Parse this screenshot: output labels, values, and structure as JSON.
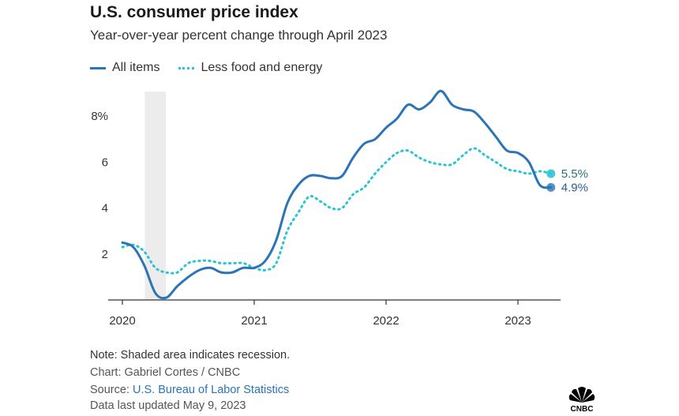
{
  "header": {
    "title": "U.S. consumer price index",
    "subtitle": "Year-over-year percent change through April 2023"
  },
  "footer": {
    "note": "Note: Shaded area indicates recession.",
    "credit": "Chart: Gabriel Cortes / CNBC",
    "source_prefix": "Source: ",
    "source_link": "U.S. Bureau of Labor Statistics",
    "updated": "Data last updated May 9, 2023",
    "logo_text": "CNBC"
  },
  "colors": {
    "all_items": "#2b74b7",
    "core": "#2bc4d6",
    "recession": "#ececec",
    "axis": "#333333",
    "link": "#2b74b7"
  },
  "chart_data": {
    "type": "line",
    "title": "U.S. consumer price index",
    "subtitle": "Year-over-year percent change through April 2023",
    "xlabel": "",
    "ylabel": "",
    "x_start": 2020.0,
    "x_step_months": 1,
    "xlim": [
      2020.0,
      2023.33
    ],
    "ylim": [
      0,
      9
    ],
    "y_ticks": [
      2,
      4,
      6,
      8
    ],
    "y_tick_labels": [
      "2",
      "4",
      "6",
      "8%"
    ],
    "x_ticks": [
      2020,
      2021,
      2022,
      2023
    ],
    "x_tick_labels": [
      "2020",
      "2021",
      "2022",
      "2023"
    ],
    "grid": false,
    "legend_position": "top-left",
    "recession": {
      "start": 2020.17,
      "end": 2020.33,
      "label": "Recession"
    },
    "series": [
      {
        "name": "All items",
        "style": "solid",
        "values": [
          2.5,
          2.3,
          1.5,
          0.3,
          0.1,
          0.6,
          1.0,
          1.3,
          1.4,
          1.2,
          1.2,
          1.4,
          1.4,
          1.7,
          2.6,
          4.2,
          5.0,
          5.4,
          5.4,
          5.3,
          5.4,
          6.2,
          6.8,
          7.0,
          7.5,
          7.9,
          8.5,
          8.3,
          8.6,
          9.1,
          8.5,
          8.3,
          8.2,
          7.7,
          7.1,
          6.5,
          6.4,
          6.0,
          5.0,
          4.9
        ],
        "end_label": "4.9%"
      },
      {
        "name": "Less food and energy",
        "style": "dotted",
        "values": [
          2.3,
          2.4,
          2.1,
          1.4,
          1.2,
          1.2,
          1.6,
          1.7,
          1.7,
          1.6,
          1.6,
          1.6,
          1.4,
          1.3,
          1.6,
          3.0,
          3.8,
          4.5,
          4.3,
          4.0,
          4.0,
          4.6,
          4.9,
          5.5,
          6.0,
          6.4,
          6.5,
          6.2,
          6.0,
          5.9,
          5.9,
          6.3,
          6.6,
          6.3,
          6.0,
          5.7,
          5.6,
          5.5,
          5.6,
          5.5
        ],
        "end_label": "5.5%"
      }
    ]
  }
}
